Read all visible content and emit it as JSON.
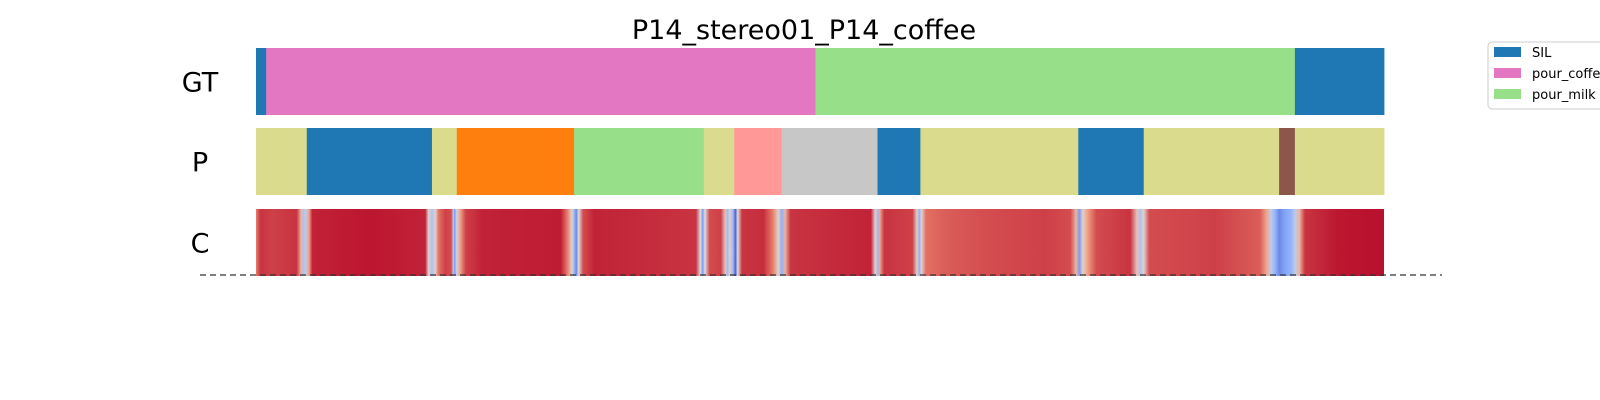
{
  "chart_data": {
    "type": "segmentation-timeline",
    "title": "P14_stereo01_P14_coffee",
    "xlim": [
      0,
      1000
    ],
    "rows": [
      {
        "label": "GT",
        "kind": "segments",
        "segments": [
          {
            "start": 0,
            "end": 9,
            "color": "#1f77b4"
          },
          {
            "start": 9,
            "end": 496,
            "color": "#e377c2"
          },
          {
            "start": 496,
            "end": 921,
            "color": "#98df8a"
          },
          {
            "start": 921,
            "end": 1000,
            "color": "#1f77b4"
          }
        ]
      },
      {
        "label": "P",
        "kind": "segments",
        "segments": [
          {
            "start": 0,
            "end": 45,
            "color": "#dbdb8d"
          },
          {
            "start": 45,
            "end": 156,
            "color": "#1f77b4"
          },
          {
            "start": 156,
            "end": 178,
            "color": "#dbdb8d"
          },
          {
            "start": 178,
            "end": 282,
            "color": "#ff7f0e"
          },
          {
            "start": 282,
            "end": 397,
            "color": "#98df8a"
          },
          {
            "start": 397,
            "end": 424,
            "color": "#dbdb8d"
          },
          {
            "start": 424,
            "end": 466,
            "color": "#ff9896"
          },
          {
            "start": 466,
            "end": 551,
            "color": "#c7c7c7"
          },
          {
            "start": 551,
            "end": 589,
            "color": "#1f77b4"
          },
          {
            "start": 589,
            "end": 729,
            "color": "#dbdb8d"
          },
          {
            "start": 729,
            "end": 787,
            "color": "#1f77b4"
          },
          {
            "start": 787,
            "end": 907,
            "color": "#dbdb8d"
          },
          {
            "start": 907,
            "end": 921,
            "color": "#8c564b"
          },
          {
            "start": 921,
            "end": 1000,
            "color": "#dbdb8d"
          }
        ]
      },
      {
        "label": "C",
        "kind": "confidence",
        "colormap": "coolwarm",
        "stops": [
          [
            0,
            0.8
          ],
          [
            4,
            0.92
          ],
          [
            14,
            0.9
          ],
          [
            36,
            0.92
          ],
          [
            40,
            0.65
          ],
          [
            42,
            0.35
          ],
          [
            44,
            0.4
          ],
          [
            47,
            0.72
          ],
          [
            50,
            0.95
          ],
          [
            100,
            0.97
          ],
          [
            150,
            0.95
          ],
          [
            153,
            0.55
          ],
          [
            156,
            0.35
          ],
          [
            159,
            0.55
          ],
          [
            162,
            0.82
          ],
          [
            168,
            0.9
          ],
          [
            173,
            0.88
          ],
          [
            175,
            0.4
          ],
          [
            176,
            0.2
          ],
          [
            178,
            0.45
          ],
          [
            181,
            0.72
          ],
          [
            186,
            0.9
          ],
          [
            200,
            0.95
          ],
          [
            270,
            0.96
          ],
          [
            276,
            0.8
          ],
          [
            280,
            0.55
          ],
          [
            282,
            0.3
          ],
          [
            284,
            0.15
          ],
          [
            286,
            0.5
          ],
          [
            290,
            0.88
          ],
          [
            300,
            0.95
          ],
          [
            390,
            0.92
          ],
          [
            394,
            0.5
          ],
          [
            396,
            0.2
          ],
          [
            398,
            0.5
          ],
          [
            402,
            0.88
          ],
          [
            412,
            0.9
          ],
          [
            416,
            0.6
          ],
          [
            418,
            0.3
          ],
          [
            420,
            0.55
          ],
          [
            423,
            0.3
          ],
          [
            425,
            0.05
          ],
          [
            427,
            0.5
          ],
          [
            431,
            0.92
          ],
          [
            450,
            0.93
          ],
          [
            458,
            0.8
          ],
          [
            463,
            0.55
          ],
          [
            466,
            0.25
          ],
          [
            469,
            0.65
          ],
          [
            474,
            0.92
          ],
          [
            545,
            0.95
          ],
          [
            549,
            0.55
          ],
          [
            551,
            0.3
          ],
          [
            553,
            0.7
          ],
          [
            557,
            0.92
          ],
          [
            582,
            0.9
          ],
          [
            586,
            0.55
          ],
          [
            588,
            0.25
          ],
          [
            590,
            0.55
          ],
          [
            594,
            0.82
          ],
          [
            610,
            0.85
          ],
          [
            650,
            0.88
          ],
          [
            700,
            0.9
          ],
          [
            722,
            0.88
          ],
          [
            727,
            0.65
          ],
          [
            730,
            0.2
          ],
          [
            733,
            0.55
          ],
          [
            737,
            0.72
          ],
          [
            745,
            0.88
          ],
          [
            775,
            0.92
          ],
          [
            781,
            0.6
          ],
          [
            784,
            0.35
          ],
          [
            787,
            0.55
          ],
          [
            792,
            0.88
          ],
          [
            850,
            0.9
          ],
          [
            890,
            0.85
          ],
          [
            896,
            0.7
          ],
          [
            900,
            0.4
          ],
          [
            904,
            0.25
          ],
          [
            907,
            0.15
          ],
          [
            912,
            0.22
          ],
          [
            918,
            0.28
          ],
          [
            921,
            0.4
          ],
          [
            925,
            0.65
          ],
          [
            930,
            0.92
          ],
          [
            960,
            0.97
          ],
          [
            1000,
            0.98
          ]
        ]
      }
    ],
    "legend": {
      "placement": "top-right",
      "entries": [
        {
          "label": "SIL",
          "color": "#1f77b4"
        },
        {
          "label": "pour_coffee",
          "color": "#e377c2"
        },
        {
          "label": "pour_milk",
          "color": "#98df8a"
        }
      ]
    }
  }
}
